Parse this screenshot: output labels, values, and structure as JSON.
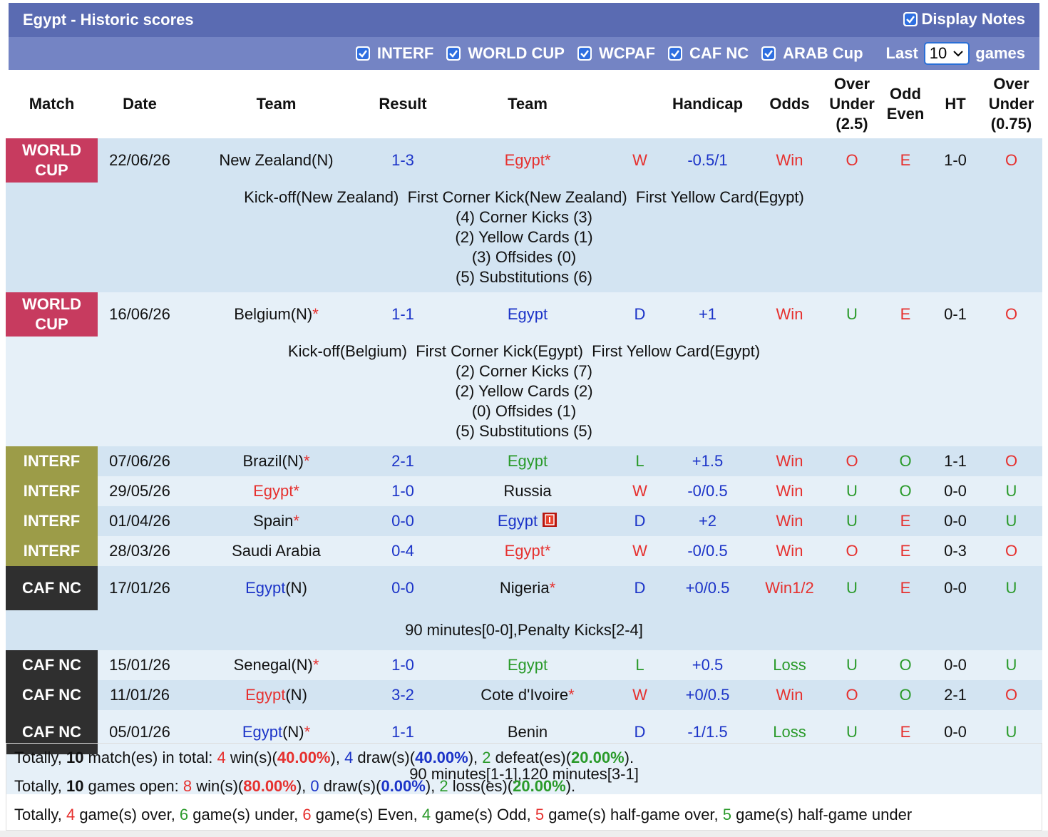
{
  "header": {
    "title": "Egypt - Historic scores",
    "display_notes": "Display Notes"
  },
  "filters": {
    "options": [
      {
        "label": "INTERF",
        "color": "#9c9c48"
      },
      {
        "label": "WORLD CUP",
        "color": "#c73b5f"
      },
      {
        "label": "WCPAF",
        "color": "#5a6bb2"
      },
      {
        "label": "CAF NC",
        "color": "#2f2f2f"
      },
      {
        "label": "ARAB Cup",
        "color": "#5a6bb2"
      }
    ],
    "last_label": "Last",
    "last_value": "10",
    "games_label": "games"
  },
  "table": {
    "columns": [
      "Match",
      "Date",
      "Team",
      "Result",
      "Team",
      null,
      "Handicap",
      "Odds",
      "Over Under (2.5)",
      "Odd Even",
      "HT",
      "Over Under (0.75)"
    ],
    "colors": {
      "outcome": {
        "W": "#e6302e",
        "D": "#1b33c8",
        "L": "#2a9a2a"
      },
      "odds": {
        "Win": "#e6302e",
        "Win1/2": "#e6302e",
        "Loss": "#2a9a2a"
      },
      "ou": {
        "O": "#e6302e",
        "U": "#2a9a2a"
      },
      "oe": {
        "E": "#e6302e",
        "O": "#2a9a2a"
      },
      "ou2": {
        "O": "#e6302e",
        "U": "#2a9a2a"
      },
      "handicap": "#1b33c8",
      "result": "#1b33c8"
    },
    "rows": [
      {
        "match": "WORLD CUP",
        "date": "22/06/26",
        "home": {
          "name": "New Zealand",
          "suffix": "(N)"
        },
        "result": "1-3",
        "away": {
          "name": "Egypt",
          "star": "*",
          "focus": true
        },
        "outcome": "W",
        "handicap": "-0.5/1",
        "odds": "Win",
        "ou": "O",
        "oe": "E",
        "ht": "1-0",
        "ou2": "O",
        "notes": [
          "Kick-off(New Zealand)  First Corner Kick(New Zealand)  First Yellow Card(Egypt)",
          "(4) Corner Kicks (3)",
          "(2) Yellow Cards (1)",
          "(3) Offsides (0)",
          "(5) Substitutions (6)"
        ]
      },
      {
        "match": "WORLD CUP",
        "date": "16/06/26",
        "home": {
          "name": "Belgium",
          "suffix": "(N)",
          "star": "*"
        },
        "result": "1-1",
        "away": {
          "name": "Egypt",
          "focus": true
        },
        "outcome": "D",
        "handicap": "+1",
        "odds": "Win",
        "ou": "U",
        "oe": "E",
        "ht": "0-1",
        "ou2": "O",
        "notes": [
          "Kick-off(Belgium)  First Corner Kick(Egypt)  First Yellow Card(Egypt)",
          "(2) Corner Kicks (7)",
          "(2) Yellow Cards (2)",
          "(0) Offsides (1)",
          "(5) Substitutions (5)"
        ]
      },
      {
        "match": "INTERF",
        "date": "07/06/26",
        "home": {
          "name": "Brazil",
          "suffix": "(N)",
          "star": "*"
        },
        "result": "2-1",
        "away": {
          "name": "Egypt",
          "focus": true
        },
        "outcome": "L",
        "handicap": "+1.5",
        "odds": "Win",
        "ou": "O",
        "oe": "O",
        "ht": "1-1",
        "ou2": "O"
      },
      {
        "match": "INTERF",
        "date": "29/05/26",
        "home": {
          "name": "Egypt",
          "star": "*",
          "focus": true
        },
        "result": "1-0",
        "away": {
          "name": "Russia"
        },
        "outcome": "W",
        "handicap": "-0/0.5",
        "odds": "Win",
        "ou": "U",
        "oe": "O",
        "ht": "0-0",
        "ou2": "U"
      },
      {
        "match": "INTERF",
        "date": "01/04/26",
        "home": {
          "name": "Spain",
          "star": "*"
        },
        "result": "0-0",
        "away": {
          "name": "Egypt",
          "focus": true,
          "red_card": true
        },
        "outcome": "D",
        "handicap": "+2",
        "odds": "Win",
        "ou": "U",
        "oe": "E",
        "ht": "0-0",
        "ou2": "U"
      },
      {
        "match": "INTERF",
        "date": "28/03/26",
        "home": {
          "name": "Saudi Arabia"
        },
        "result": "0-4",
        "away": {
          "name": "Egypt",
          "star": "*",
          "focus": true
        },
        "outcome": "W",
        "handicap": "-0/0.5",
        "odds": "Win",
        "ou": "O",
        "oe": "E",
        "ht": "0-3",
        "ou2": "O"
      },
      {
        "match": "CAF NC",
        "date": "17/01/26",
        "home": {
          "name": "Egypt",
          "suffix": "(N)",
          "focus": true
        },
        "result": "0-0",
        "away": {
          "name": "Nigeria",
          "star": "*"
        },
        "outcome": "D",
        "handicap": "+0/0.5",
        "odds": "Win1/2",
        "ou": "U",
        "oe": "E",
        "ht": "0-0",
        "ou2": "U",
        "notes": [
          "90 minutes[0-0],Penalty Kicks[2-4]"
        ]
      },
      {
        "match": "CAF NC",
        "date": "15/01/26",
        "home": {
          "name": "Senegal",
          "suffix": "(N)",
          "star": "*"
        },
        "result": "1-0",
        "away": {
          "name": "Egypt",
          "focus": true
        },
        "outcome": "L",
        "handicap": "+0.5",
        "odds": "Loss",
        "ou": "U",
        "oe": "O",
        "ht": "0-0",
        "ou2": "U"
      },
      {
        "match": "CAF NC",
        "date": "11/01/26",
        "home": {
          "name": "Egypt",
          "suffix": "(N)",
          "focus": true
        },
        "result": "3-2",
        "away": {
          "name": "Cote d'Ivoire",
          "star": "*"
        },
        "outcome": "W",
        "handicap": "+0/0.5",
        "odds": "Win",
        "ou": "O",
        "oe": "O",
        "ht": "2-1",
        "ou2": "O"
      },
      {
        "match": "CAF NC",
        "date": "05/01/26",
        "home": {
          "name": "Egypt",
          "suffix": "(N)",
          "star": "*",
          "focus": true
        },
        "result": "1-1",
        "away": {
          "name": "Benin"
        },
        "outcome": "D",
        "handicap": "-1/1.5",
        "odds": "Loss",
        "ou": "U",
        "oe": "E",
        "ht": "0-0",
        "ou2": "U",
        "notes": [
          "90 minutes[1-1],120 minutes[3-1]"
        ]
      }
    ]
  },
  "summary": [
    [
      {
        "text": "Totally, "
      },
      {
        "text": "10",
        "bold": true
      },
      {
        "text": " match(es) in total: "
      },
      {
        "text": "4",
        "color": "#e6302e"
      },
      {
        "text": " win(s)("
      },
      {
        "text": "40.00%",
        "color": "#e6302e",
        "bold": true
      },
      {
        "text": "), "
      },
      {
        "text": "4",
        "color": "#1b33c8"
      },
      {
        "text": " draw(s)("
      },
      {
        "text": "40.00%",
        "color": "#1b33c8",
        "bold": true
      },
      {
        "text": "), "
      },
      {
        "text": "2",
        "color": "#2a9a2a"
      },
      {
        "text": " defeat(es)("
      },
      {
        "text": "20.00%",
        "color": "#2a9a2a",
        "bold": true
      },
      {
        "text": ")."
      }
    ],
    [
      {
        "text": "Totally, "
      },
      {
        "text": "10",
        "bold": true
      },
      {
        "text": " games open: "
      },
      {
        "text": "8",
        "color": "#e6302e"
      },
      {
        "text": " win(s)("
      },
      {
        "text": "80.00%",
        "color": "#e6302e",
        "bold": true
      },
      {
        "text": "), "
      },
      {
        "text": "0",
        "color": "#1b33c8"
      },
      {
        "text": " draw(s)("
      },
      {
        "text": "0.00%",
        "color": "#1b33c8",
        "bold": true
      },
      {
        "text": "), "
      },
      {
        "text": "2",
        "color": "#2a9a2a"
      },
      {
        "text": " loss(es)("
      },
      {
        "text": "20.00%",
        "color": "#2a9a2a",
        "bold": true
      },
      {
        "text": ")."
      }
    ],
    [
      {
        "text": "Totally, "
      },
      {
        "text": "4",
        "color": "#e6302e"
      },
      {
        "text": " game(s) over, "
      },
      {
        "text": "6",
        "color": "#2a9a2a"
      },
      {
        "text": " game(s) under, "
      },
      {
        "text": "6",
        "color": "#e6302e"
      },
      {
        "text": " game(s) Even, "
      },
      {
        "text": "4",
        "color": "#2a9a2a"
      },
      {
        "text": " game(s) Odd, "
      },
      {
        "text": "5",
        "color": "#e6302e"
      },
      {
        "text": " game(s) half-game over, "
      },
      {
        "text": "5",
        "color": "#2a9a2a"
      },
      {
        "text": " game(s) half-game under"
      }
    ]
  ]
}
